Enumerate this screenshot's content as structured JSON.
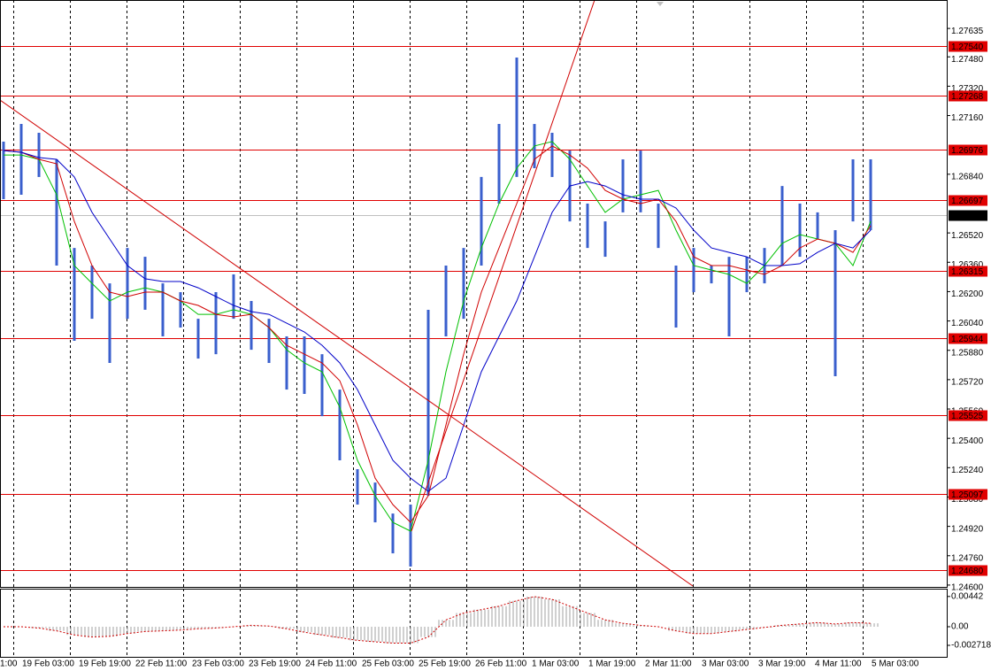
{
  "chart_data": {
    "type": "ohlc",
    "categories": [
      "1:00",
      "19 Feb 03:00",
      "19 Feb 19:00",
      "22 Feb 11:00",
      "23 Feb 03:00",
      "23 Feb 19:00",
      "24 Feb 11:00",
      "25 Feb 03:00",
      "25 Feb 19:00",
      "26 Feb 11:00",
      "1 Mar 03:00",
      "1 Mar 19:00",
      "2 Mar 11:00",
      "3 Mar 03:00",
      "3 Mar 19:00",
      "4 Mar 11:00",
      "5 Mar 03:00"
    ],
    "ylim": [
      1.2459,
      1.2779
    ],
    "yticks": [
      1.27635,
      {
        "value": 1.2748,
        "label": "1.27480"
      },
      {
        "value": 1.2732,
        "label": "1.27320"
      },
      {
        "value": 1.2716,
        "label": "1.27160"
      },
      {
        "value": 1.2684,
        "label": "1.26840"
      },
      {
        "value": 1.2652,
        "label": "1.26520"
      },
      {
        "value": 1.2636,
        "label": "1.26360"
      },
      {
        "value": 1.262,
        "label": "1.26200"
      },
      {
        "value": 1.2604,
        "label": "1.26040"
      },
      {
        "value": 1.2588,
        "label": "1.25880"
      },
      {
        "value": 1.2572,
        "label": "1.25720"
      },
      {
        "value": 1.2556,
        "label": "1.25560"
      },
      {
        "value": 1.254,
        "label": "1.25400"
      },
      {
        "value": 1.2524,
        "label": "1.25240"
      },
      {
        "value": 1.2508,
        "label": "1.25080"
      },
      {
        "value": 1.2492,
        "label": "1.24920"
      },
      {
        "value": 1.2476,
        "label": "1.24760"
      },
      {
        "value": 1.246,
        "label": "1.24600"
      }
    ],
    "grid": true,
    "levels": [
      {
        "value": 1.2754,
        "label": "1.27540"
      },
      1.27268,
      1.26976,
      1.26697,
      1.26315,
      1.25944,
      1.25525,
      1.25097,
      {
        "value": 1.2468,
        "label": "1.24680"
      }
    ],
    "level_color": "#e00000",
    "current": 1.26618,
    "series": [
      {
        "color": "#3a5fcd",
        "high": [
          1.27018,
          1.27114,
          1.27066,
          1.26921,
          1.26438,
          1.26342,
          1.26245,
          1.26438,
          1.2639,
          1.26245,
          1.26197,
          1.26052,
          1.26197,
          1.26294,
          1.26149,
          1.26052,
          1.25956,
          1.25956,
          1.25859,
          1.25666,
          1.25232,
          1.25159,
          1.2499,
          1.25039,
          1.26101,
          1.26342,
          1.26438,
          1.26825,
          1.27114,
          1.27476,
          1.27114,
          1.27066,
          1.26969,
          1.2668,
          1.26583,
          1.26921,
          1.26969,
          1.2668,
          1.26342,
          1.26438,
          1.26342,
          1.2639,
          1.2639,
          1.26438,
          1.26776,
          1.2668,
          1.26632,
          1.26535,
          1.26921,
          1.26921
        ],
        "low": [
          1.26704,
          1.26728,
          1.26825,
          1.26342,
          1.25932,
          1.26052,
          1.25811,
          1.26052,
          1.26101,
          1.25956,
          1.26004,
          1.25835,
          1.25859,
          1.26052,
          1.25883,
          1.25811,
          1.25666,
          1.25642,
          1.25521,
          1.2528,
          1.25039,
          1.24942,
          1.24773,
          1.24701,
          1.25087,
          1.25956,
          1.26052,
          1.26342,
          1.2668,
          1.26825,
          1.26873,
          1.26825,
          1.26583,
          1.26438,
          1.2639,
          1.26632,
          1.26632,
          1.26438,
          1.26004,
          1.26197,
          1.26245,
          1.25956,
          1.26197,
          1.26245,
          1.26342,
          1.2639,
          1.26487,
          1.25739,
          1.26583,
          1.26535
        ]
      }
    ],
    "averages": [
      {
        "color": "#00c000",
        "values": [
          1.26945,
          1.26945,
          1.26921,
          1.26728,
          1.26342,
          1.26245,
          1.26149,
          1.26197,
          1.26221,
          1.26197,
          1.26149,
          1.26076,
          1.26076,
          1.26101,
          1.26076,
          1.26004,
          1.25883,
          1.25811,
          1.25763,
          1.2557,
          1.2528,
          1.25087,
          1.24942,
          1.24894,
          1.2528,
          1.25763,
          1.26149,
          1.26438,
          1.2668,
          1.26873,
          1.26994,
          1.27018,
          1.26921,
          1.26776,
          1.26632,
          1.26704,
          1.26728,
          1.26752,
          1.26535,
          1.26342,
          1.26318,
          1.26294,
          1.26245,
          1.26342,
          1.26463,
          1.26511,
          1.26487,
          1.26463,
          1.26342,
          1.26583
        ]
      },
      {
        "color": "#d00000",
        "values": [
          1.26969,
          1.2696,
          1.26921,
          1.26897,
          1.26583,
          1.26342,
          1.26197,
          1.26173,
          1.26197,
          1.26197,
          1.26149,
          1.26125,
          1.26076,
          1.26062,
          1.26076,
          1.26004,
          1.25907,
          1.25859,
          1.25811,
          1.25714,
          1.25473,
          1.25183,
          1.25039,
          1.24942,
          1.25087,
          1.25473,
          1.25859,
          1.26197,
          1.26438,
          1.2668,
          1.26921,
          1.26994,
          1.26945,
          1.26873,
          1.26752,
          1.26704,
          1.2668,
          1.26704,
          1.26583,
          1.2639,
          1.26342,
          1.26342,
          1.26318,
          1.26294,
          1.26342,
          1.26438,
          1.26487,
          1.26463,
          1.26414,
          1.26559
        ]
      },
      {
        "color": "#0000c8",
        "values": [
          1.26969,
          1.2696,
          1.26931,
          1.26921,
          1.26825,
          1.26632,
          1.26487,
          1.26342,
          1.2627,
          1.26255,
          1.26255,
          1.26221,
          1.26173,
          1.26125,
          1.26091,
          1.26076,
          1.26028,
          1.2598,
          1.25907,
          1.25811,
          1.25666,
          1.25473,
          1.2528,
          1.25183,
          1.25111,
          1.25183,
          1.25473,
          1.25763,
          1.25956,
          1.26149,
          1.2639,
          1.26632,
          1.26776,
          1.268,
          1.26776,
          1.26728,
          1.26704,
          1.26704,
          1.26656,
          1.26535,
          1.26438,
          1.26414,
          1.2639,
          1.26342,
          1.26342,
          1.26352,
          1.26414,
          1.26463,
          1.26438,
          1.26535
        ]
      }
    ],
    "oscillator": {
      "color": "#a0a0a0",
      "line_color": "#d00000",
      "ylim": [
        -0.00453,
        0.00556
      ],
      "yticks": [
        0.00442,
        {
          "value": 0,
          "label": "0.00"
        },
        -0.002718
      ],
      "values": [
        0,
        0,
        -0.0002,
        -0.0006,
        -0.0012,
        -0.0015,
        -0.0014,
        -0.001,
        -0.0007,
        -0.0006,
        -0.0005,
        -0.0003,
        -0.0002,
        0,
        0.0002,
        0.0001,
        -0.0003,
        -0.0008,
        -0.0012,
        -0.0016,
        -0.002,
        -0.0022,
        -0.0024,
        -0.0024,
        -0.0015,
        0.001,
        0.002,
        0.0025,
        0.003,
        0.0038,
        0.0044,
        0.004,
        0.003,
        0.002,
        0.001,
        0.0005,
        0.0002,
        0,
        -0.0006,
        -0.001,
        -0.001,
        -0.0007,
        -0.0004,
        -0.0001,
        0.0002,
        0.0004,
        0.0006,
        0.0004,
        0.0006,
        0.0005
      ]
    }
  }
}
